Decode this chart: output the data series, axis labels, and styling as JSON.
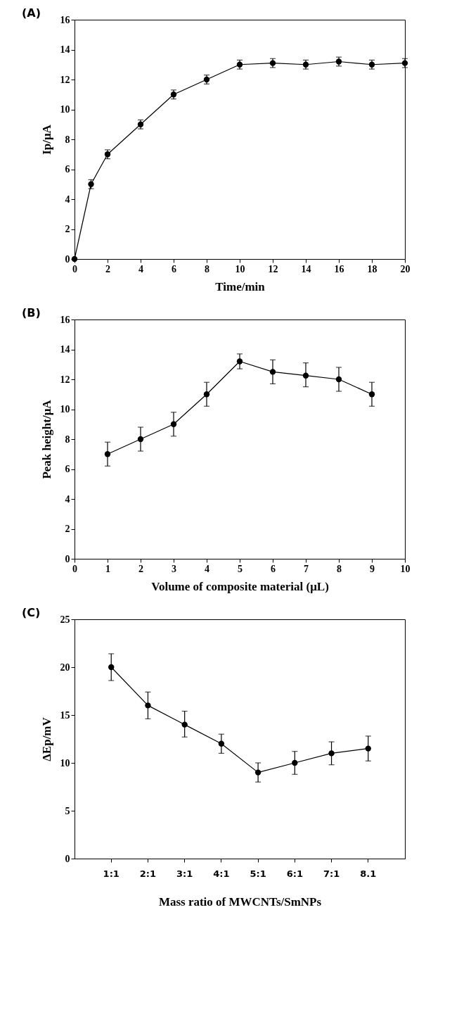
{
  "chart_data": [
    {
      "type": "line",
      "title": "(A)",
      "xlabel": "Time/min",
      "ylabel": "Ip/μA",
      "x": [
        0,
        1,
        2,
        4,
        6,
        8,
        10,
        12,
        14,
        16,
        18,
        20
      ],
      "series": [
        {
          "color": "#000000",
          "values": [
            0,
            5,
            7,
            9,
            11,
            12,
            13,
            13.1,
            13,
            13.2,
            13,
            13.1
          ],
          "errors": [
            null,
            0.3,
            0.3,
            0.3,
            0.3,
            0.3,
            0.3,
            0.3,
            0.3,
            0.3,
            0.3,
            0.3
          ]
        }
      ],
      "xlim": [
        0,
        20
      ],
      "xticks": [
        0,
        2,
        4,
        6,
        8,
        10,
        12,
        14,
        16,
        18,
        20
      ],
      "ylim": [
        0,
        16
      ],
      "yticks": [
        0,
        2,
        4,
        6,
        8,
        10,
        12,
        14,
        16
      ],
      "grid": false,
      "marker": "circle",
      "legend": false
    },
    {
      "type": "line",
      "title": "(B)",
      "xlabel": "Volume of composite material (μL)",
      "ylabel": "Peak height/μA",
      "x": [
        1,
        2,
        3,
        4,
        5,
        6,
        7,
        8,
        9
      ],
      "series": [
        {
          "color": "#000000",
          "values": [
            7,
            8,
            9,
            11,
            13.2,
            12.5,
            12.25,
            12,
            11
          ],
          "errors": [
            [
              6.2,
              7.8
            ],
            [
              7.2,
              8.8
            ],
            [
              8.2,
              9.8
            ],
            [
              10.2,
              11.8
            ],
            [
              12.7,
              13.7
            ],
            [
              11.7,
              13.3
            ],
            [
              11.5,
              13.1
            ],
            [
              11.2,
              12.8
            ],
            [
              10.2,
              11.8
            ]
          ]
        }
      ],
      "xlim": [
        0,
        10
      ],
      "xticks": [
        0,
        1,
        2,
        3,
        4,
        5,
        6,
        7,
        8,
        9,
        10
      ],
      "ylim": [
        0,
        16
      ],
      "yticks": [
        0,
        2,
        4,
        6,
        8,
        10,
        12,
        14,
        16
      ],
      "grid": false,
      "marker": "circle",
      "legend": false
    },
    {
      "type": "line",
      "title": "(C)",
      "xlabel": "Mass ratio of MWCNTs/SmNPs",
      "ylabel": "ΔEp/mV",
      "categories": [
        "1:1",
        "2:1",
        "3:1",
        "4:1",
        "5:1",
        "6:1",
        "7:1",
        "8.1"
      ],
      "series": [
        {
          "color": "#000000",
          "values": [
            20,
            16,
            14,
            12,
            9,
            10,
            11,
            11.5
          ],
          "errors": [
            [
              18.6,
              21.4
            ],
            [
              14.6,
              17.4
            ],
            [
              12.7,
              15.4
            ],
            [
              11,
              13
            ],
            [
              8,
              10
            ],
            [
              8.8,
              11.2
            ],
            [
              9.8,
              12.2
            ],
            [
              10.2,
              12.8
            ]
          ]
        }
      ],
      "ylim": [
        0,
        25
      ],
      "yticks": [
        0,
        5,
        10,
        15,
        20,
        25
      ],
      "grid": false,
      "marker": "circle",
      "legend": false
    }
  ]
}
